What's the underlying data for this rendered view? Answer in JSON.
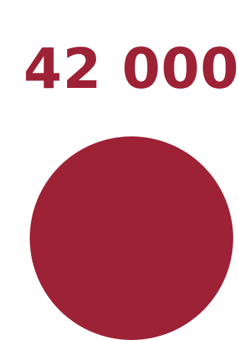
{
  "headline": {
    "value": "42 000"
  },
  "colors": {
    "accent": "#9e2236",
    "background": "#ffffff"
  },
  "graphic": {
    "shape": "circle"
  }
}
